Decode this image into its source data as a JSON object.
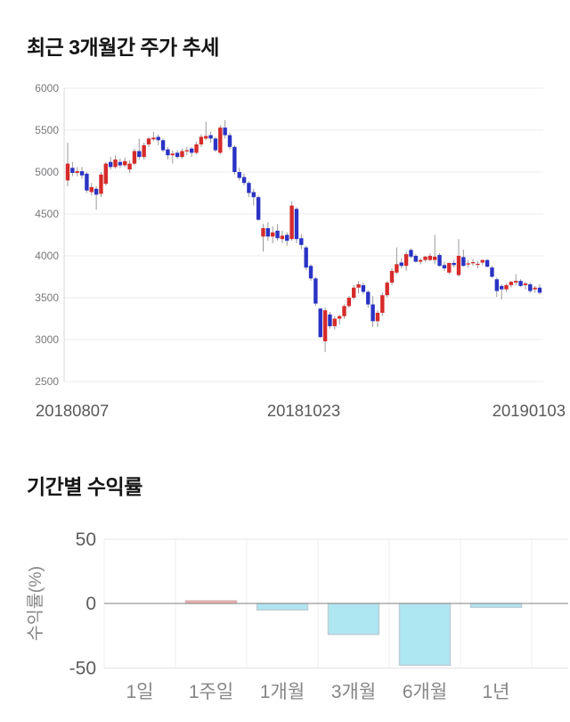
{
  "chart_data": [
    {
      "type": "candlestick",
      "title": "최근 3개월간 주가 추세",
      "x_tick_labels": [
        "20180807",
        "20181023",
        "20190103"
      ],
      "y_ticks": [
        6000,
        5500,
        5000,
        4500,
        4000,
        3500,
        3000,
        2500
      ],
      "ylim": [
        2500,
        6000
      ],
      "grid": "horizontal",
      "colors": {
        "up": "#d62b2b",
        "down": "#2a33c4",
        "wick": "#9a9a9a",
        "grid": "#ebebeb",
        "axis": "#d8d8d8",
        "tick_text": "#77777b",
        "date_text": "#59595b"
      },
      "ohlc_columns": [
        "open",
        "high",
        "low",
        "close"
      ],
      "candles": [
        [
          4900,
          5350,
          4830,
          5100
        ],
        [
          5050,
          5120,
          4950,
          4990
        ],
        [
          4990,
          5060,
          4950,
          5010
        ],
        [
          5010,
          5060,
          4920,
          4960
        ],
        [
          4980,
          5000,
          4750,
          4780
        ],
        [
          4760,
          4870,
          4720,
          4820
        ],
        [
          4800,
          4830,
          4550,
          4730
        ],
        [
          4740,
          5000,
          4700,
          4970
        ],
        [
          4860,
          5120,
          4840,
          5100
        ],
        [
          5120,
          5180,
          5030,
          5060
        ],
        [
          5060,
          5200,
          5040,
          5150
        ],
        [
          5120,
          5160,
          5050,
          5080
        ],
        [
          5080,
          5170,
          5060,
          5130
        ],
        [
          5030,
          5140,
          4990,
          5100
        ],
        [
          5100,
          5280,
          5080,
          5250
        ],
        [
          5250,
          5400,
          5150,
          5180
        ],
        [
          5180,
          5350,
          5150,
          5320
        ],
        [
          5330,
          5420,
          5300,
          5400
        ],
        [
          5390,
          5480,
          5370,
          5410
        ],
        [
          5420,
          5450,
          5320,
          5380
        ],
        [
          5380,
          5400,
          5240,
          5260
        ],
        [
          5270,
          5300,
          5150,
          5200
        ],
        [
          5200,
          5260,
          5100,
          5220
        ],
        [
          5230,
          5260,
          5160,
          5180
        ],
        [
          5180,
          5280,
          5160,
          5250
        ],
        [
          5250,
          5300,
          5200,
          5260
        ],
        [
          5280,
          5300,
          5180,
          5230
        ],
        [
          5230,
          5360,
          5210,
          5330
        ],
        [
          5330,
          5450,
          5300,
          5420
        ],
        [
          5400,
          5600,
          5380,
          5430
        ],
        [
          5440,
          5480,
          5350,
          5400
        ],
        [
          5400,
          5420,
          5240,
          5260
        ],
        [
          5230,
          5560,
          5210,
          5530
        ],
        [
          5530,
          5620,
          5400,
          5440
        ],
        [
          5440,
          5470,
          5270,
          5300
        ],
        [
          5300,
          5320,
          4970,
          5000
        ],
        [
          5000,
          5050,
          4900,
          4930
        ],
        [
          4940,
          4980,
          4840,
          4870
        ],
        [
          4870,
          4890,
          4700,
          4750
        ],
        [
          4760,
          4800,
          4600,
          4700
        ],
        [
          4700,
          4720,
          4420,
          4430
        ],
        [
          4230,
          4380,
          4050,
          4330
        ],
        [
          4330,
          4400,
          4180,
          4230
        ],
        [
          4230,
          4350,
          4150,
          4280
        ],
        [
          4300,
          4380,
          4180,
          4210
        ],
        [
          4200,
          4300,
          4150,
          4240
        ],
        [
          4250,
          4280,
          4120,
          4180
        ],
        [
          4200,
          4650,
          4180,
          4600
        ],
        [
          4560,
          4580,
          4150,
          4200
        ],
        [
          4210,
          4260,
          4080,
          4130
        ],
        [
          4100,
          4120,
          3830,
          3860
        ],
        [
          3880,
          3900,
          3700,
          3730
        ],
        [
          3730,
          3750,
          3400,
          3430
        ],
        [
          3370,
          3380,
          3020,
          3030
        ],
        [
          2980,
          3380,
          2850,
          3350
        ],
        [
          3300,
          3330,
          3130,
          3160
        ],
        [
          3160,
          3280,
          3120,
          3250
        ],
        [
          3250,
          3300,
          3180,
          3280
        ],
        [
          3280,
          3420,
          3250,
          3400
        ],
        [
          3400,
          3520,
          3380,
          3500
        ],
        [
          3500,
          3650,
          3480,
          3620
        ],
        [
          3620,
          3700,
          3550,
          3660
        ],
        [
          3650,
          3680,
          3540,
          3570
        ],
        [
          3570,
          3590,
          3380,
          3420
        ],
        [
          3420,
          3520,
          3150,
          3220
        ],
        [
          3220,
          3350,
          3150,
          3320
        ],
        [
          3320,
          3560,
          3280,
          3530
        ],
        [
          3530,
          3700,
          3500,
          3680
        ],
        [
          3680,
          3850,
          3650,
          3820
        ],
        [
          3800,
          4100,
          3780,
          3900
        ],
        [
          3920,
          3970,
          3850,
          3880
        ],
        [
          3880,
          4050,
          3820,
          4020
        ],
        [
          4070,
          4090,
          3970,
          3990
        ],
        [
          4000,
          4020,
          3920,
          3930
        ],
        [
          3930,
          3970,
          3900,
          3950
        ],
        [
          3950,
          4000,
          3930,
          3990
        ],
        [
          3950,
          4030,
          3940,
          4000
        ],
        [
          3950,
          4250,
          3900,
          3990
        ],
        [
          4010,
          4030,
          3870,
          3880
        ],
        [
          3890,
          3930,
          3820,
          3850
        ],
        [
          3800,
          3920,
          3780,
          3915
        ],
        [
          3915,
          3950,
          3860,
          3890
        ],
        [
          3770,
          4200,
          3750,
          4000
        ],
        [
          3985,
          4075,
          3870,
          3880
        ],
        [
          3900,
          3950,
          3860,
          3910
        ],
        [
          3920,
          3960,
          3880,
          3925
        ],
        [
          3900,
          3940,
          3850,
          3905
        ],
        [
          3920,
          3955,
          3890,
          3950
        ],
        [
          3950,
          3960,
          3860,
          3870
        ],
        [
          3860,
          3880,
          3740,
          3750
        ],
        [
          3720,
          3740,
          3510,
          3580
        ],
        [
          3640,
          3660,
          3480,
          3600
        ],
        [
          3600,
          3670,
          3570,
          3650
        ],
        [
          3650,
          3700,
          3620,
          3690
        ],
        [
          3680,
          3780,
          3650,
          3700
        ],
        [
          3700,
          3720,
          3630,
          3640
        ],
        [
          3650,
          3690,
          3600,
          3670
        ],
        [
          3660,
          3680,
          3560,
          3580
        ],
        [
          3600,
          3640,
          3560,
          3620
        ],
        [
          3620,
          3660,
          3540,
          3560
        ]
      ]
    },
    {
      "type": "bar",
      "title": "기간별 수익률",
      "categories": [
        "1일",
        "1주일",
        "1개월",
        "3개월",
        "6개월",
        "1년"
      ],
      "values": [
        0,
        2,
        -5,
        -24,
        -48,
        -3
      ],
      "ylabel": "수익률(%)",
      "y_ticks": [
        50,
        0,
        -50
      ],
      "ylim": [
        -55,
        50
      ],
      "grid": "vertical",
      "legend": "none",
      "colors": {
        "positive": "#f5a8a8",
        "positive_border": "#d8b4b4",
        "negative": "#aee6f2",
        "negative_border": "#bccfd6",
        "zero_line": "#9a9a9a",
        "grid": "#ececec",
        "edge_line": "#e4e4e4",
        "tick_text": "#5c5c5c",
        "label_text": "#868686"
      }
    }
  ]
}
